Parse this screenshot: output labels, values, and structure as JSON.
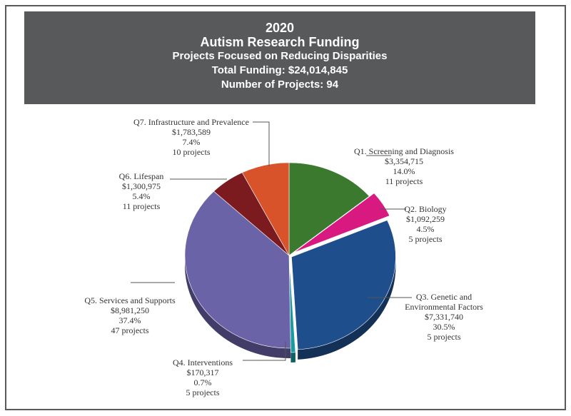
{
  "header": {
    "year": "2020",
    "title": "Autism Research Funding",
    "subtitle": "Projects Focused on Reducing Disparities",
    "total_funding": "Total Funding: $24,014,845",
    "num_projects": "Number of Projects: 94"
  },
  "chart_data": {
    "type": "pie",
    "title": "Autism Research Funding",
    "slices": [
      {
        "name": "Q1. Screening and Diagnosis",
        "name_lines": [
          "Q1. Screening and Diagnosis"
        ],
        "amount": "$3,354,715",
        "value": 3354715,
        "percent": "14.0%",
        "projects": "11 projects",
        "color": "#3b7a2e"
      },
      {
        "name": "Q2. Biology",
        "name_lines": [
          "Q2. Biology"
        ],
        "amount": "$1,092,259",
        "value": 1092259,
        "percent": "4.5%",
        "projects": "5 projects",
        "color": "#d8197f"
      },
      {
        "name": "Q3. Genetic and Environmental Factors",
        "name_lines": [
          "Q3. Genetic and",
          "Environmental Factors"
        ],
        "amount": "$7,331,740",
        "value": 7331740,
        "percent": "30.5%",
        "projects": "5 projects",
        "color": "#1f4e8c"
      },
      {
        "name": "Q4. Interventions",
        "name_lines": [
          "Q4. Interventions"
        ],
        "amount": "$170,317",
        "value": 170317,
        "percent": "0.7%",
        "projects": "5 projects",
        "color": "#1a9a9e"
      },
      {
        "name": "Q5. Services and Supports",
        "name_lines": [
          "Q5. Services and Supports"
        ],
        "amount": "$8,981,250",
        "value": 8981250,
        "percent": "37.4%",
        "projects": "47 projects",
        "color": "#6b63a8"
      },
      {
        "name": "Q6. Lifespan",
        "name_lines": [
          "Q6. Lifespan"
        ],
        "amount": "$1,300,975",
        "value": 1300975,
        "percent": "5.4%",
        "projects": "11 projects",
        "color": "#7b1a1f"
      },
      {
        "name": "Q7. Infrastructure and Prevalence",
        "name_lines": [
          "Q7. Infrastructure and Prevalence"
        ],
        "amount": "$1,783,589",
        "value": 1783589,
        "percent": "7.4%",
        "projects": "10 projects",
        "color": "#d9532a"
      }
    ]
  }
}
